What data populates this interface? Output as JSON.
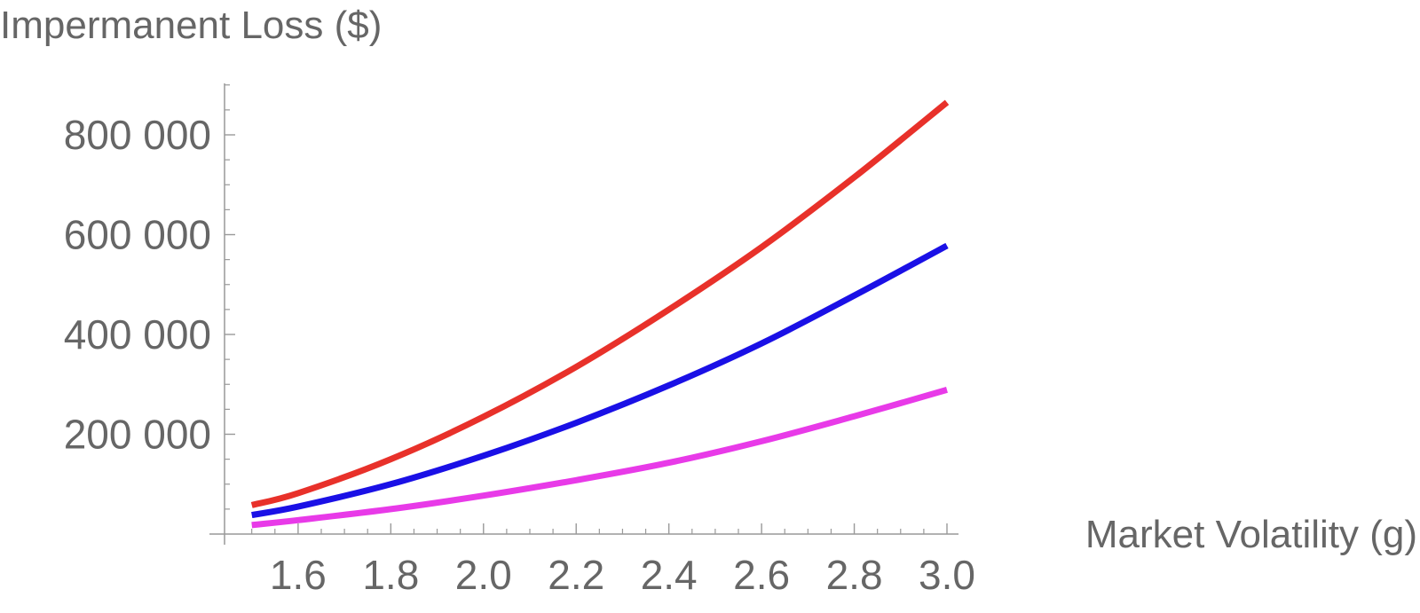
{
  "chart_data": {
    "type": "line",
    "title": "",
    "xlabel": "Market Volatility (g)",
    "ylabel": "Impermanent Loss ($)",
    "xlim": [
      1.47,
      3.0
    ],
    "ylim": [
      0,
      900000
    ],
    "x_ticks": [
      1.6,
      1.8,
      2.0,
      2.2,
      2.4,
      2.6,
      2.8,
      3.0
    ],
    "x_tick_labels": [
      "1.6",
      "1.8",
      "2.0",
      "2.2",
      "2.4",
      "2.6",
      "2.8",
      "3.0"
    ],
    "y_ticks": [
      200000,
      400000,
      600000,
      800000
    ],
    "y_tick_labels": [
      "200 000",
      "400 000",
      "600 000",
      "800 000"
    ],
    "grid": false,
    "series": [
      {
        "color": "#e8312a",
        "x": [
          1.5,
          1.6,
          1.8,
          2.0,
          2.2,
          2.4,
          2.6,
          2.8,
          3.0
        ],
        "values": [
          58000,
          82000,
          150000,
          235000,
          335000,
          450000,
          575000,
          715000,
          865000
        ]
      },
      {
        "color": "#1a10e6",
        "x": [
          1.5,
          1.6,
          1.8,
          2.0,
          2.2,
          2.4,
          2.6,
          2.8,
          3.0
        ],
        "values": [
          38000,
          55000,
          100000,
          157000,
          223000,
          298000,
          382000,
          478000,
          578000
        ]
      },
      {
        "color": "#e83ae8",
        "x": [
          1.5,
          1.6,
          1.8,
          2.0,
          2.2,
          2.4,
          2.6,
          2.8,
          3.0
        ],
        "values": [
          18000,
          28000,
          50000,
          77000,
          108000,
          143000,
          186000,
          236000,
          289000
        ]
      }
    ]
  }
}
